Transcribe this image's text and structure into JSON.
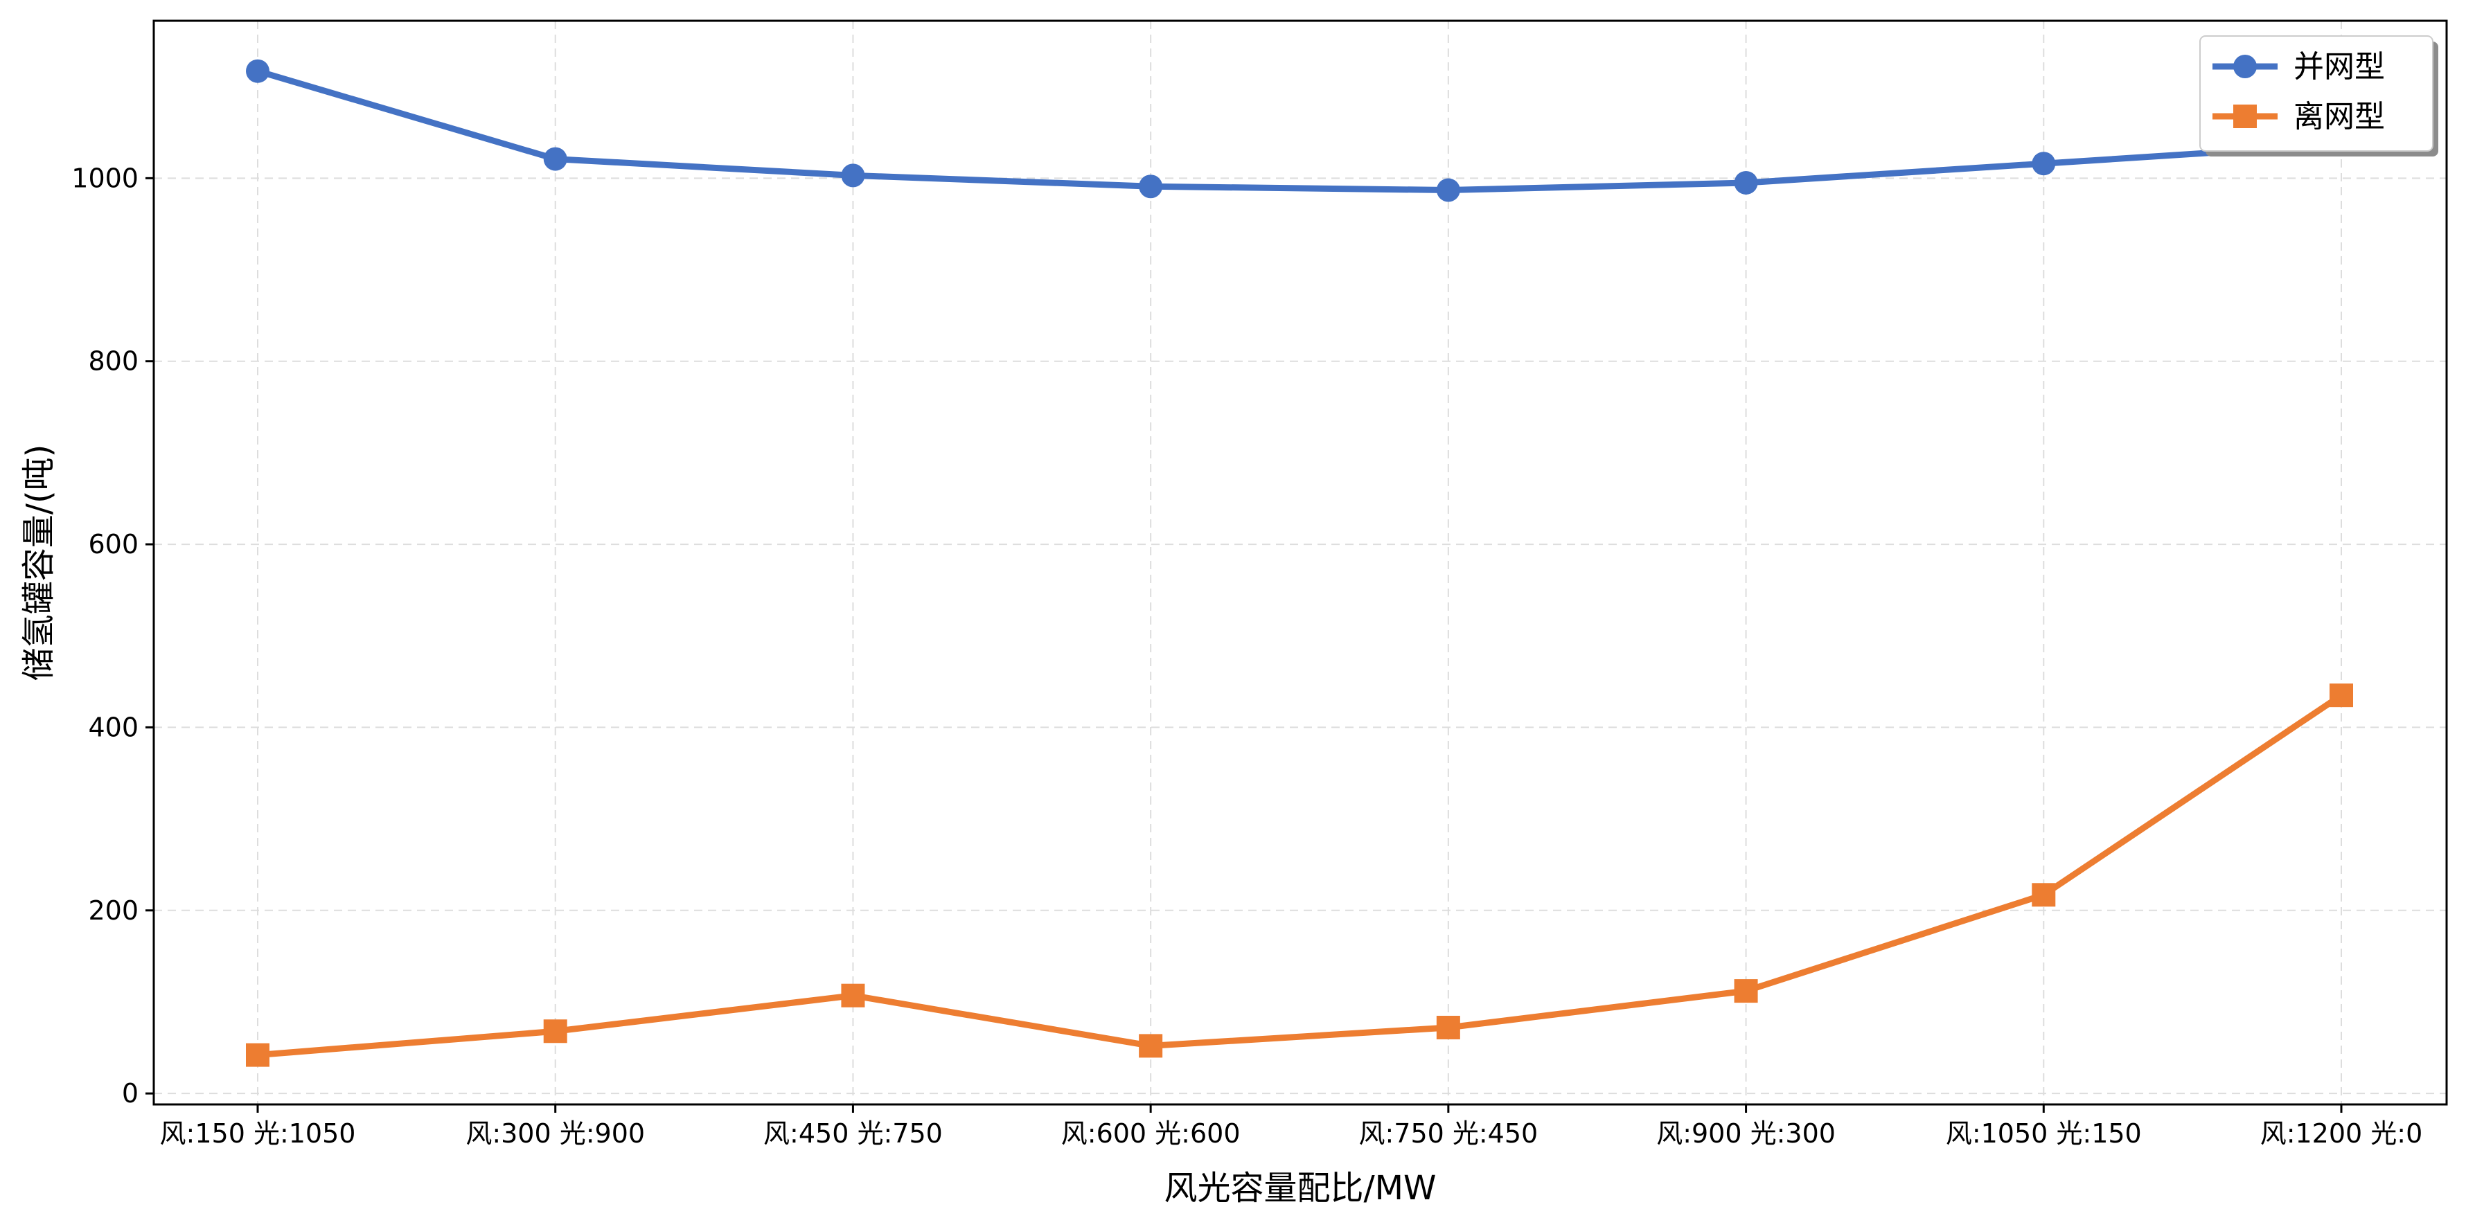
{
  "chart_data": {
    "type": "line",
    "title": "",
    "xlabel": "风光容量配比/MW",
    "ylabel": "储氢罐容量/(吨)",
    "categories": [
      "风:150 光:1050",
      "风:300 光:900",
      "风:450 光:750",
      "风:600 光:600",
      "风:750 光:450",
      "风:900 光:300",
      "风:1050 光:150",
      "风:1200 光:0"
    ],
    "series": [
      {
        "name": "并网型",
        "color": "#4472C4",
        "marker": "circle",
        "values": [
          1117,
          1021,
          1003,
          991,
          987,
          995,
          1016,
          1037
        ]
      },
      {
        "name": "离网型",
        "color": "#ED7D31",
        "marker": "square",
        "values": [
          42,
          68,
          107,
          52,
          72,
          112,
          217,
          435
        ]
      }
    ],
    "ylim": [
      -12,
      1172
    ],
    "yticks": [
      0,
      200,
      400,
      600,
      800,
      1000
    ],
    "grid": true,
    "legend_position": "top-right"
  }
}
